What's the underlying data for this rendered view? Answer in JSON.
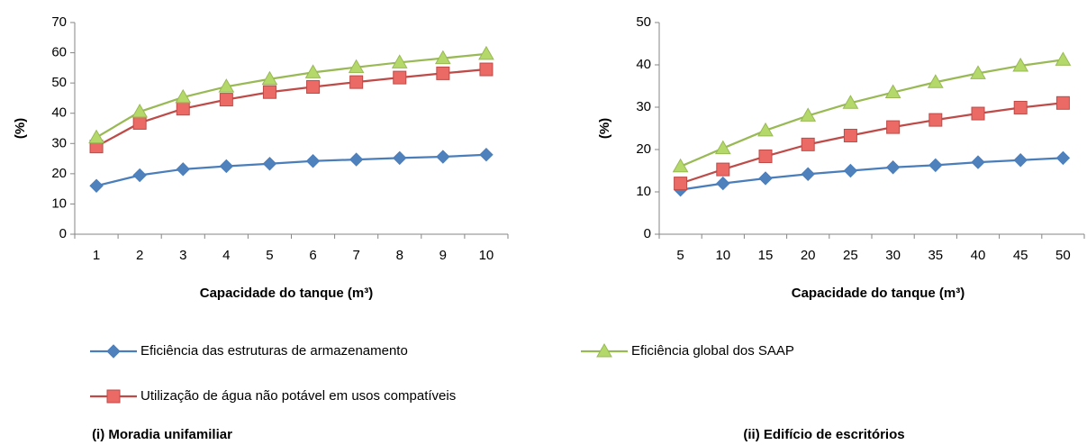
{
  "chart_data": [
    {
      "type": "line",
      "caption": "(i) Moradia unifamiliar",
      "xlabel": "Capacidade do tanque (m³)",
      "ylabel": "(%)",
      "categories": [
        1,
        2,
        3,
        4,
        5,
        6,
        7,
        8,
        9,
        10
      ],
      "ylim": [
        0,
        70
      ],
      "yticks": [
        0,
        10,
        20,
        30,
        40,
        50,
        60,
        70
      ],
      "series": [
        {
          "name": "Eficiência das estruturas de armazenamento",
          "color": "#4a7ebb",
          "marker": "diamond",
          "values": [
            16,
            19.5,
            21.5,
            22.5,
            23.3,
            24.2,
            24.7,
            25.2,
            25.6,
            26.3
          ]
        },
        {
          "name": "Utilização de água não potável em usos compatíveis",
          "color": "#be4b48",
          "marker": "square",
          "values": [
            29,
            36.8,
            41.5,
            44.5,
            47,
            48.7,
            50.3,
            51.8,
            53.2,
            54.5
          ]
        },
        {
          "name": "Eficiência global dos SAAP",
          "color": "#98b954",
          "marker": "triangle",
          "values": [
            32,
            40.5,
            45.3,
            48.8,
            51.3,
            53.5,
            55.2,
            56.8,
            58.2,
            59.6
          ]
        }
      ]
    },
    {
      "type": "line",
      "caption": "(ii) Edifício de escritórios",
      "xlabel": "Capacidade do tanque (m³)",
      "ylabel": "(%)",
      "categories": [
        5,
        10,
        15,
        20,
        25,
        30,
        35,
        40,
        45,
        50
      ],
      "ylim": [
        0,
        50
      ],
      "yticks": [
        0,
        10,
        20,
        30,
        40,
        50
      ],
      "series": [
        {
          "color": "#4a7ebb",
          "marker": "diamond",
          "values": [
            10.5,
            12,
            13.2,
            14.2,
            15,
            15.8,
            16.3,
            17,
            17.5,
            18
          ]
        },
        {
          "color": "#be4b48",
          "marker": "square",
          "values": [
            12,
            15.3,
            18.4,
            21.2,
            23.3,
            25.3,
            27,
            28.5,
            29.9,
            31
          ]
        },
        {
          "color": "#98b954",
          "marker": "triangle",
          "values": [
            16,
            20.3,
            24.5,
            28,
            31,
            33.5,
            35.9,
            38,
            39.8,
            41.2
          ]
        }
      ]
    }
  ]
}
